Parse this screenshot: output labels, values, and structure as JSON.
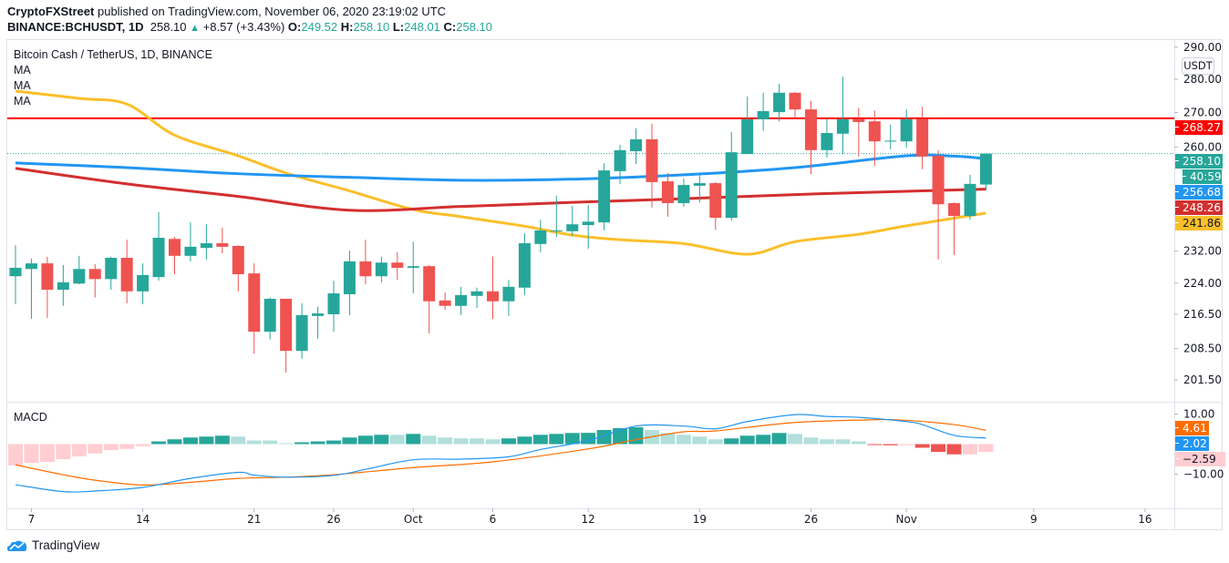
{
  "header": {
    "publisher": "CryptoFXStreet",
    "published_text": "published on TradingView.com, November 06, 2020 23:19:02 UTC",
    "symbol": "BINANCE:BCHUSDT, 1D",
    "last_price": "258.10",
    "change": "+8.57 (+3.43%)",
    "o_label": "O:",
    "o_value": "249.52",
    "h_label": "H:",
    "h_value": "258.10",
    "l_label": "L:",
    "l_value": "248.01",
    "c_label": "C:",
    "c_value": "258.10"
  },
  "legend": {
    "title": "Bitcoin Cash / TetherUS, 1D, BINANCE",
    "ma1": "MA",
    "ma2": "MA",
    "ma3": "MA",
    "macd": "MACD"
  },
  "price_axis": {
    "currency": "USDT",
    "labels": {
      "resistance": "268.27",
      "last": "258.10",
      "countdown": "40:59",
      "ma_blue": "256.68",
      "ma_red": "248.26",
      "ma_yellow": "241.86"
    }
  },
  "macd_axis": {
    "ticks": [
      {
        "value": 10,
        "label": "10.00"
      },
      {
        "value": -10,
        "label": "−10.00"
      }
    ],
    "labels": {
      "signal": "4.61",
      "macd": "2.02",
      "histogram": "−2.59"
    }
  },
  "footer": {
    "brand": "TradingView"
  },
  "colors": {
    "up": "#26a69a",
    "down": "#ef5350",
    "up_light": "#b2dfdb",
    "down_light": "#ffcdd2",
    "ma_yellow": "#fbbf2a",
    "ma_blue": "#2196f3",
    "ma_red": "#d32f2f",
    "resistance": "#ff0000",
    "macd_line": "#2196f3",
    "signal_line": "#ff6d00"
  },
  "chart_data": [
    {
      "type": "candlestick",
      "title": "Bitcoin Cash / TetherUS, 1D, BINANCE",
      "y_scale": "log",
      "ylim": [
        199,
        292
      ],
      "grid": false,
      "y_ticks": [
        {
          "value": 290,
          "label": "290.00"
        },
        {
          "value": 280,
          "label": "280.00"
        },
        {
          "value": 270,
          "label": "270.00"
        },
        {
          "value": 260,
          "label": "260.00"
        },
        {
          "value": 232,
          "label": "232.00"
        },
        {
          "value": 224,
          "label": "224.00"
        },
        {
          "value": 216.5,
          "label": "216.50"
        },
        {
          "value": 208.5,
          "label": "208.50"
        },
        {
          "value": 201.5,
          "label": "201.50"
        }
      ],
      "x_ticks": [
        {
          "date": "2020-09-07",
          "label": "7"
        },
        {
          "date": "2020-09-14",
          "label": "14"
        },
        {
          "date": "2020-09-21",
          "label": "21"
        },
        {
          "date": "2020-09-26",
          "label": "26"
        },
        {
          "date": "2020-10-01",
          "label": "Oct"
        },
        {
          "date": "2020-10-06",
          "label": "6"
        },
        {
          "date": "2020-10-12",
          "label": "12"
        },
        {
          "date": "2020-10-19",
          "label": "19"
        },
        {
          "date": "2020-10-26",
          "label": "26"
        },
        {
          "date": "2020-11-01",
          "label": "Nov"
        },
        {
          "date": "2020-11-09",
          "label": "9"
        },
        {
          "date": "2020-11-16",
          "label": "16"
        }
      ],
      "ohlc_columns": [
        "date",
        "open",
        "high",
        "low",
        "close"
      ],
      "candles": [
        [
          "2020-09-06",
          225.7,
          233.5,
          218.9,
          227.8
        ],
        [
          "2020-09-07",
          227.5,
          230.1,
          215.4,
          228.9
        ],
        [
          "2020-09-08",
          228.9,
          230.6,
          215.6,
          222.4
        ],
        [
          "2020-09-09",
          222.4,
          228.5,
          218.5,
          224.2
        ],
        [
          "2020-09-10",
          223.9,
          230.8,
          223.7,
          227.5
        ],
        [
          "2020-09-11",
          227.5,
          228.7,
          220.5,
          225.0
        ],
        [
          "2020-09-12",
          225.0,
          230.6,
          222.4,
          230.3
        ],
        [
          "2020-09-13",
          230.3,
          234.9,
          219.1,
          222.0
        ],
        [
          "2020-09-14",
          222.0,
          228.9,
          218.9,
          226.0
        ],
        [
          "2020-09-15",
          225.5,
          242.1,
          224.6,
          235.4
        ],
        [
          "2020-09-16",
          235.1,
          235.6,
          226.2,
          230.8
        ],
        [
          "2020-09-17",
          230.8,
          239.4,
          229.4,
          233.1
        ],
        [
          "2020-09-18",
          232.8,
          238.9,
          229.9,
          234.0
        ],
        [
          "2020-09-19",
          234.0,
          238.0,
          231.4,
          233.1
        ],
        [
          "2020-09-20",
          233.3,
          233.5,
          222.0,
          226.2
        ],
        [
          "2020-09-21",
          226.4,
          228.9,
          207.4,
          212.4
        ],
        [
          "2020-09-22",
          212.4,
          220.5,
          210.6,
          220.2
        ],
        [
          "2020-09-23",
          220.2,
          220.2,
          203.1,
          208.0
        ],
        [
          "2020-09-24",
          208.0,
          219.1,
          206.2,
          216.3
        ],
        [
          "2020-09-25",
          216.1,
          218.3,
          210.8,
          216.7
        ],
        [
          "2020-09-26",
          216.5,
          224.6,
          212.4,
          221.5
        ],
        [
          "2020-09-27",
          221.3,
          232.1,
          216.3,
          229.4
        ],
        [
          "2020-09-28",
          229.4,
          234.9,
          223.7,
          225.7
        ],
        [
          "2020-09-29",
          225.7,
          230.6,
          224.2,
          229.1
        ],
        [
          "2020-09-30",
          229.1,
          231.7,
          224.8,
          227.8
        ],
        [
          "2020-10-01",
          227.8,
          234.4,
          221.5,
          228.2
        ],
        [
          "2020-10-02",
          228.2,
          228.5,
          212.0,
          219.6
        ],
        [
          "2020-10-03",
          219.8,
          221.7,
          217.6,
          218.5
        ],
        [
          "2020-10-04",
          218.5,
          223.1,
          216.3,
          221.1
        ],
        [
          "2020-10-05",
          220.9,
          222.9,
          218.0,
          222.0
        ],
        [
          "2020-10-06",
          222.0,
          230.6,
          215.4,
          219.6
        ],
        [
          "2020-10-07",
          219.6,
          224.8,
          216.1,
          223.1
        ],
        [
          "2020-10-08",
          222.9,
          236.6,
          221.1,
          234.0
        ],
        [
          "2020-10-09",
          233.8,
          240.1,
          231.7,
          237.3
        ],
        [
          "2020-10-10",
          237.1,
          246.5,
          235.6,
          237.3
        ],
        [
          "2020-10-11",
          237.1,
          243.8,
          235.8,
          238.9
        ],
        [
          "2020-10-12",
          238.7,
          244.0,
          232.6,
          239.6
        ],
        [
          "2020-10-13",
          239.4,
          255.4,
          237.3,
          253.4
        ],
        [
          "2020-10-14",
          253.2,
          260.6,
          249.7,
          259.1
        ],
        [
          "2020-10-15",
          258.8,
          265.4,
          255.2,
          262.2
        ],
        [
          "2020-10-16",
          262.2,
          266.7,
          243.3,
          250.2
        ],
        [
          "2020-10-17",
          250.4,
          252.7,
          240.9,
          244.5
        ],
        [
          "2020-10-18",
          244.5,
          251.2,
          243.5,
          249.4
        ],
        [
          "2020-10-19",
          249.2,
          252.7,
          244.7,
          249.9
        ],
        [
          "2020-10-20",
          249.9,
          250.2,
          237.5,
          240.6
        ],
        [
          "2020-10-21",
          240.6,
          264.3,
          239.9,
          258.5
        ],
        [
          "2020-10-22",
          258.0,
          274.8,
          258.0,
          268.0
        ],
        [
          "2020-10-23",
          268.0,
          275.9,
          264.6,
          270.4
        ],
        [
          "2020-10-24",
          270.1,
          278.6,
          267.4,
          275.9
        ],
        [
          "2020-10-25",
          275.9,
          276.1,
          268.0,
          270.9
        ],
        [
          "2020-10-26",
          270.9,
          273.4,
          252.4,
          259.1
        ],
        [
          "2020-10-27",
          259.1,
          268.0,
          257.0,
          264.0
        ],
        [
          "2020-10-28",
          263.8,
          280.8,
          258.0,
          268.0
        ],
        [
          "2020-10-29",
          268.0,
          271.4,
          257.3,
          267.2
        ],
        [
          "2020-10-30",
          267.4,
          270.6,
          254.7,
          261.6
        ],
        [
          "2020-10-31",
          261.6,
          266.4,
          259.3,
          261.8
        ],
        [
          "2020-11-01",
          261.6,
          270.9,
          259.8,
          268.0
        ],
        [
          "2020-11-02",
          268.0,
          271.7,
          253.7,
          257.3
        ],
        [
          "2020-11-03",
          257.5,
          259.1,
          229.9,
          244.2
        ],
        [
          "2020-11-04",
          244.5,
          244.7,
          231.0,
          241.1
        ],
        [
          "2020-11-05",
          241.1,
          252.2,
          240.1,
          249.7
        ],
        [
          "2020-11-06",
          249.52,
          258.1,
          248.01,
          258.1
        ]
      ],
      "series": [
        {
          "name": "MA",
          "color": "#fbbf2a",
          "points": [
            [
              "2020-09-06",
              276.4
            ],
            [
              "2020-09-10",
              274.2
            ],
            [
              "2020-09-13",
              272.5
            ],
            [
              "2020-09-16",
              263.4
            ],
            [
              "2020-09-20",
              257.5
            ],
            [
              "2020-09-23",
              252.7
            ],
            [
              "2020-09-27",
              247.8
            ],
            [
              "2020-10-01",
              242.8
            ],
            [
              "2020-10-04",
              240.9
            ],
            [
              "2020-10-08",
              238.4
            ],
            [
              "2020-10-11",
              236.1
            ],
            [
              "2020-10-14",
              234.9
            ],
            [
              "2020-10-18",
              233.9
            ],
            [
              "2020-10-22",
              231.2
            ],
            [
              "2020-10-25",
              234.4
            ],
            [
              "2020-10-29",
              236.3
            ],
            [
              "2020-11-01",
              238.5
            ],
            [
              "2020-11-06",
              241.86
            ]
          ]
        },
        {
          "name": "MA",
          "color": "#2196f3",
          "points": [
            [
              "2020-09-06",
              255.5
            ],
            [
              "2020-09-13",
              254.2
            ],
            [
              "2020-09-20",
              252.5
            ],
            [
              "2020-09-27",
              251.5
            ],
            [
              "2020-10-04",
              250.7
            ],
            [
              "2020-10-11",
              251.0
            ],
            [
              "2020-10-18",
              252.2
            ],
            [
              "2020-10-25",
              254.2
            ],
            [
              "2020-11-01",
              257.5
            ],
            [
              "2020-11-04",
              257.4
            ],
            [
              "2020-11-06",
              256.68
            ]
          ]
        },
        {
          "name": "MA",
          "color": "#d32f2f",
          "points": [
            [
              "2020-09-06",
              254.0
            ],
            [
              "2020-09-13",
              249.7
            ],
            [
              "2020-09-20",
              246.3
            ],
            [
              "2020-09-27",
              242.6
            ],
            [
              "2020-10-04",
              243.6
            ],
            [
              "2020-10-11",
              244.7
            ],
            [
              "2020-10-18",
              245.7
            ],
            [
              "2020-10-25",
              246.8
            ],
            [
              "2020-11-01",
              247.7
            ],
            [
              "2020-11-06",
              248.26
            ]
          ]
        }
      ],
      "horizontal_lines": [
        {
          "value": 268.27,
          "color": "#ff0000"
        }
      ],
      "last_price_line": 258.1
    },
    {
      "type": "bar+line",
      "title": "MACD",
      "ylim": [
        -15,
        15
      ],
      "histogram": [
        -7.1,
        -6.3,
        -5.9,
        -5.0,
        -4.1,
        -3.1,
        -2.0,
        -1.6,
        -0.7,
        0.9,
        1.6,
        2.2,
        2.5,
        2.8,
        2.5,
        1.2,
        1.2,
        0.3,
        0.6,
        0.9,
        1.2,
        2.2,
        2.8,
        3.1,
        3.1,
        3.4,
        2.8,
        2.2,
        1.9,
        1.9,
        1.6,
        1.9,
        2.5,
        3.1,
        3.4,
        3.7,
        3.75,
        4.7,
        5.3,
        5.6,
        4.7,
        3.7,
        3.1,
        2.5,
        1.6,
        1.9,
        2.8,
        3.1,
        3.7,
        3.4,
        2.2,
        1.6,
        1.6,
        0.9,
        -0.3,
        -0.4,
        -0.4,
        -1.2,
        -2.6,
        -3.4,
        -3.4,
        -2.59
      ],
      "macd_line": [
        [
          "2020-09-06",
          -13.5
        ],
        [
          "2020-09-09",
          -15.8
        ],
        [
          "2020-09-11",
          -15.6
        ],
        [
          "2020-09-14",
          -14.4
        ],
        [
          "2020-09-17",
          -11.4
        ],
        [
          "2020-09-20",
          -9.4
        ],
        [
          "2020-09-21",
          -10.3
        ],
        [
          "2020-09-23",
          -11.0
        ],
        [
          "2020-09-26",
          -10.4
        ],
        [
          "2020-09-28",
          -8.4
        ],
        [
          "2020-10-01",
          -5.2
        ],
        [
          "2020-10-04",
          -5.0
        ],
        [
          "2020-10-07",
          -4.2
        ],
        [
          "2020-10-09",
          -1.8
        ],
        [
          "2020-10-12",
          1.2
        ],
        [
          "2020-10-15",
          6.0
        ],
        [
          "2020-10-18",
          6.0
        ],
        [
          "2020-10-20",
          5.1
        ],
        [
          "2020-10-22",
          7.5
        ],
        [
          "2020-10-25",
          9.8
        ],
        [
          "2020-10-27",
          9.2
        ],
        [
          "2020-10-29",
          8.9
        ],
        [
          "2020-11-01",
          7.5
        ],
        [
          "2020-11-02",
          6.5
        ],
        [
          "2020-11-04",
          2.9
        ],
        [
          "2020-11-06",
          2.02
        ]
      ],
      "signal_line": [
        [
          "2020-09-06",
          -6.9
        ],
        [
          "2020-09-09",
          -10.2
        ],
        [
          "2020-09-11",
          -12.0
        ],
        [
          "2020-09-14",
          -13.6
        ],
        [
          "2020-09-17",
          -12.7
        ],
        [
          "2020-09-20",
          -11.4
        ],
        [
          "2020-09-23",
          -11.0
        ],
        [
          "2020-09-26",
          -10.2
        ],
        [
          "2020-10-01",
          -7.8
        ],
        [
          "2020-10-06",
          -5.9
        ],
        [
          "2020-10-12",
          -1.6
        ],
        [
          "2020-10-15",
          1.5
        ],
        [
          "2020-10-18",
          4.1
        ],
        [
          "2020-10-20",
          4.4
        ],
        [
          "2020-10-25",
          7.2
        ],
        [
          "2020-10-30",
          8.1
        ],
        [
          "2020-11-01",
          7.9
        ],
        [
          "2020-11-04",
          6.5
        ],
        [
          "2020-11-06",
          4.61
        ]
      ]
    }
  ]
}
